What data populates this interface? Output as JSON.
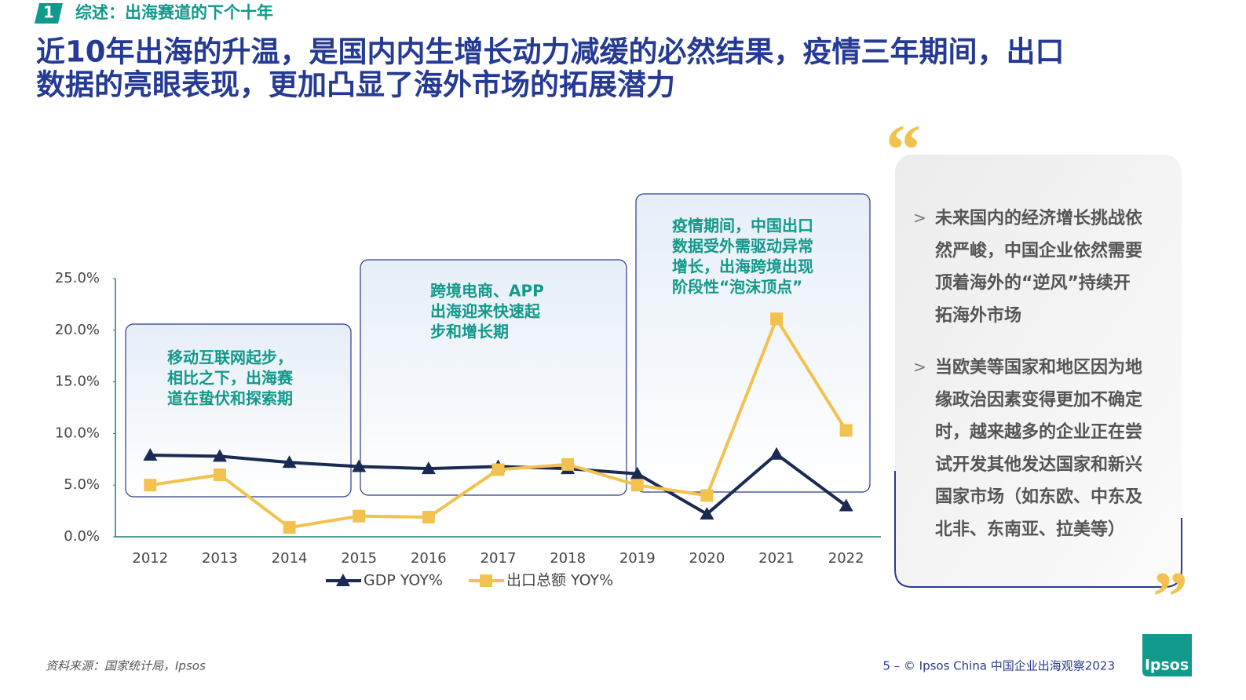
{
  "header": {
    "section_number": "1",
    "section_title": "综述：出海赛道的下个十年",
    "title": [
      "近10年出海的升温，是国内内生增长动力减缓的必然结果，疫情三年期间，出口",
      "数据的亮眼表现，更加凸显了海外市场的拓展潜力"
    ]
  },
  "chart_data": {
    "type": "line",
    "categories": [
      "2012",
      "2013",
      "2014",
      "2015",
      "2016",
      "2017",
      "2018",
      "2019",
      "2020",
      "2021",
      "2022"
    ],
    "series": [
      {
        "name": "GDP YOY%",
        "color": "#1b2a52",
        "marker": "triangle",
        "values": [
          7.9,
          7.8,
          7.2,
          6.8,
          6.6,
          6.8,
          6.6,
          6.1,
          2.2,
          8.0,
          3.0
        ]
      },
      {
        "name": "出口总额 YOY%",
        "color": "#f2c14e",
        "marker": "square",
        "values": [
          5.0,
          6.0,
          0.9,
          2.0,
          1.9,
          6.5,
          7.0,
          5.0,
          4.0,
          21.1,
          10.3
        ]
      }
    ],
    "ylim": [
      0,
      25
    ],
    "yticks": [
      {
        "value": 0,
        "label": "0.0%"
      },
      {
        "value": 5,
        "label": "5.0%"
      },
      {
        "value": 10,
        "label": "10.0%"
      },
      {
        "value": 15,
        "label": "15.0%"
      },
      {
        "value": 20,
        "label": "20.0%"
      },
      {
        "value": 25,
        "label": "25.0%"
      }
    ],
    "grid": false,
    "annotations": [
      {
        "lines": [
          "移动互联网起步，",
          "相比之下，出海赛",
          "道在蛰伏和探索期"
        ]
      },
      {
        "lines": [
          "跨境电商、APP",
          "出海迎来快速起",
          "步和增长期"
        ]
      },
      {
        "lines": [
          "疫情期间，中国出口",
          "数据受外需驱动异常",
          "增长，出海跨境出现",
          "阶段性“泡沫顶点”"
        ]
      }
    ]
  },
  "quote": {
    "bullets": [
      [
        "未来国内的经济增长挑战依",
        "然严峻，中国企业依然需要",
        "顶着海外的“逆风”持续开",
        "拓海外市场"
      ],
      [
        "当欧美等国家和地区因为地",
        "缘政治因素变得更加不确定",
        "时，越来越多的企业正在尝",
        "试开发其他发达国家和新兴",
        "国家市场（如东欧、中东及",
        "北非、东南亚、拉美等）"
      ]
    ]
  },
  "footer": {
    "source": "资料来源：国家统计局，Ipsos",
    "page": "5 – © Ipsos China 中国企业出海观察2023",
    "logo": "Ipsos"
  }
}
